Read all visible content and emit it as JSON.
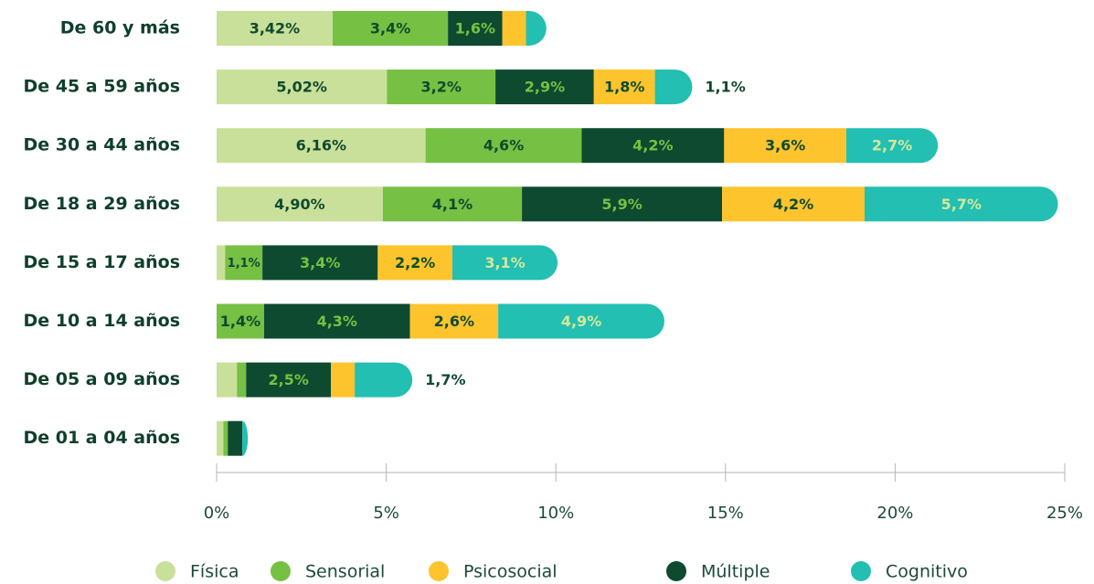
{
  "chart_data": {
    "type": "stacked-bar-horizontal",
    "categories": [
      "De 60 y más",
      "De 45 a 59 años",
      "De 30 a 44 años",
      "De 18 a 29 años",
      "De 15 a 17 años",
      "De 10 a 14 años",
      "De 05 a 09 años",
      "De 01 a 04 años"
    ],
    "series": [
      {
        "name": "Física",
        "color": "#c9e09a",
        "values": [
          3.42,
          5.02,
          6.16,
          4.9,
          0.25,
          0,
          0.6,
          0.2
        ],
        "value_labels": [
          "3,42%",
          "5,02%",
          "6,16%",
          "4,90%",
          null,
          null,
          null,
          null
        ]
      },
      {
        "name": "Sensorial",
        "color": "#76c043",
        "values": [
          3.4,
          3.2,
          4.6,
          4.1,
          1.1,
          1.4,
          0.27,
          0.13
        ],
        "value_labels": [
          "3,4%",
          "3,2%",
          "4,6%",
          "4,1%",
          "1,1%",
          "1,4%",
          null,
          null
        ]
      },
      {
        "name": "Múltiple",
        "color": "#0e4a2f",
        "values": [
          1.6,
          2.9,
          4.2,
          5.9,
          3.4,
          4.3,
          2.5,
          0.43
        ],
        "value_labels": [
          "1,6%",
          "2,9%",
          "4,2%",
          "5,9%",
          "3,4%",
          "4,3%",
          "2,5%",
          null
        ]
      },
      {
        "name": "Psicosocial",
        "color": "#fdc42d",
        "values": [
          0.7,
          1.8,
          3.6,
          4.2,
          2.2,
          2.6,
          0.7,
          0
        ],
        "value_labels": [
          null,
          "1,8%",
          "3,6%",
          "4,2%",
          "2,2%",
          "2,6%",
          null,
          null
        ]
      },
      {
        "name": "Cognitivo",
        "color": "#22bfb2",
        "values": [
          0.6,
          1.1,
          2.7,
          5.7,
          3.1,
          4.9,
          1.7,
          0.16
        ],
        "value_labels": [
          null,
          "1,1%",
          "2,7%",
          "5,7%",
          "3,1%",
          "4,9%",
          "1,7%",
          null
        ]
      }
    ],
    "xlim": [
      0,
      25
    ],
    "xticks": [
      {
        "value": 0,
        "label": "0%"
      },
      {
        "value": 5,
        "label": "5%"
      },
      {
        "value": 10,
        "label": "10%"
      },
      {
        "value": 15,
        "label": "15%"
      },
      {
        "value": 20,
        "label": "20%"
      },
      {
        "value": 25,
        "label": "25%"
      }
    ],
    "legend": "bottom"
  }
}
